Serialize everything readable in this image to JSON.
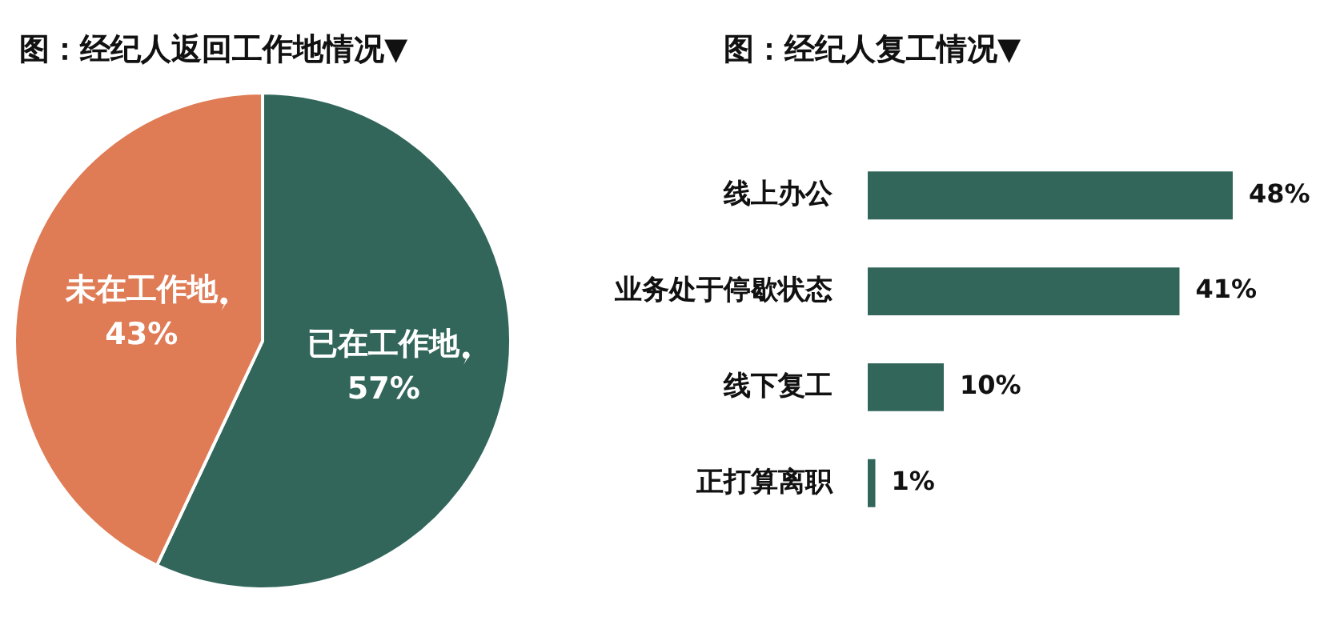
{
  "chart_data": [
    {
      "type": "pie",
      "title": "图：经纪人返回工作地情况▼",
      "categories": [
        "已在工作地",
        "未在工作地"
      ],
      "values": [
        57,
        43
      ],
      "colors": [
        "#32665a",
        "#df7b55"
      ],
      "value_labels": [
        "57%",
        "43%"
      ],
      "legend": false
    },
    {
      "type": "bar",
      "title": "图：经纪人复工情况▼",
      "orientation": "horizontal",
      "categories": [
        "线上办公",
        "业务处于停歇状态",
        "线下复工",
        "正打算离职"
      ],
      "values": [
        48,
        41,
        10,
        1
      ],
      "color": "#32665a",
      "value_labels": [
        "48%",
        "41%",
        "10%",
        "1%"
      ],
      "legend": false
    }
  ]
}
